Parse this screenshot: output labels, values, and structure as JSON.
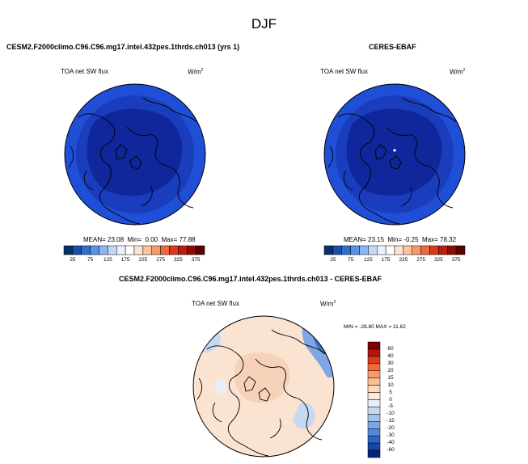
{
  "figure": {
    "season": "DJF",
    "panels": [
      {
        "title": "CESM2.F2000climo.C96.C96.mg17.intel.432pes.1thrds.ch013 (yrs 1)",
        "variable": "TOA net SW flux",
        "units_base": "W/m",
        "units_exp": "2",
        "stats": {
          "mean_label": "MEAN=",
          "mean": "23.08",
          "min_label": "Min=",
          "min": "0.00",
          "max_label": "Max=",
          "max": "77.88"
        }
      },
      {
        "title": "CERES-EBAF",
        "variable": "TOA net SW flux",
        "units_base": "W/m",
        "units_exp": "2",
        "stats": {
          "mean_label": "MEAN=",
          "mean": "23.15",
          "min_label": "Min=",
          "min": "-0.25",
          "max_label": "Max=",
          "max": "78.32"
        }
      },
      {
        "title": "CESM2.F2000climo.C96.C96.mg17.intel.432pes.1thrds.ch013 - CERES-EBAF",
        "variable": "TOA net SW flux",
        "units_base": "W/m",
        "units_exp": "2",
        "minmax": "MIN = -28.80 MAX = 11.62"
      }
    ],
    "colorbar_ticks": [
      "25",
      "75",
      "125",
      "175",
      "225",
      "275",
      "325",
      "375"
    ],
    "colorbar_colors": [
      "#08306b",
      "#1a4fa8",
      "#2f6fd0",
      "#5a93e3",
      "#8cb7ee",
      "#c2d9f5",
      "#ebf2fb",
      "#ffffff",
      "#fde4d2",
      "#fbc3a0",
      "#f59a6b",
      "#ec6a3d",
      "#d93a1e",
      "#b81e10",
      "#8c0d06",
      "#5c0000"
    ],
    "diff_ticks": [
      "60",
      "40",
      "30",
      "20",
      "15",
      "10",
      "5",
      "0",
      "-5",
      "-10",
      "-15",
      "-20",
      "-30",
      "-40",
      "-60"
    ],
    "diff_colors": [
      "#7f0000",
      "#b0140a",
      "#d83a1c",
      "#f06a3c",
      "#f79a6c",
      "#fbbd97",
      "#fdd9c0",
      "#fbe9dc",
      "#e7eefa",
      "#c7d8f3",
      "#a4c2ec",
      "#7ea7e3",
      "#5387d8",
      "#2d63c4",
      "#1a45a6",
      "#08247a"
    ]
  }
}
